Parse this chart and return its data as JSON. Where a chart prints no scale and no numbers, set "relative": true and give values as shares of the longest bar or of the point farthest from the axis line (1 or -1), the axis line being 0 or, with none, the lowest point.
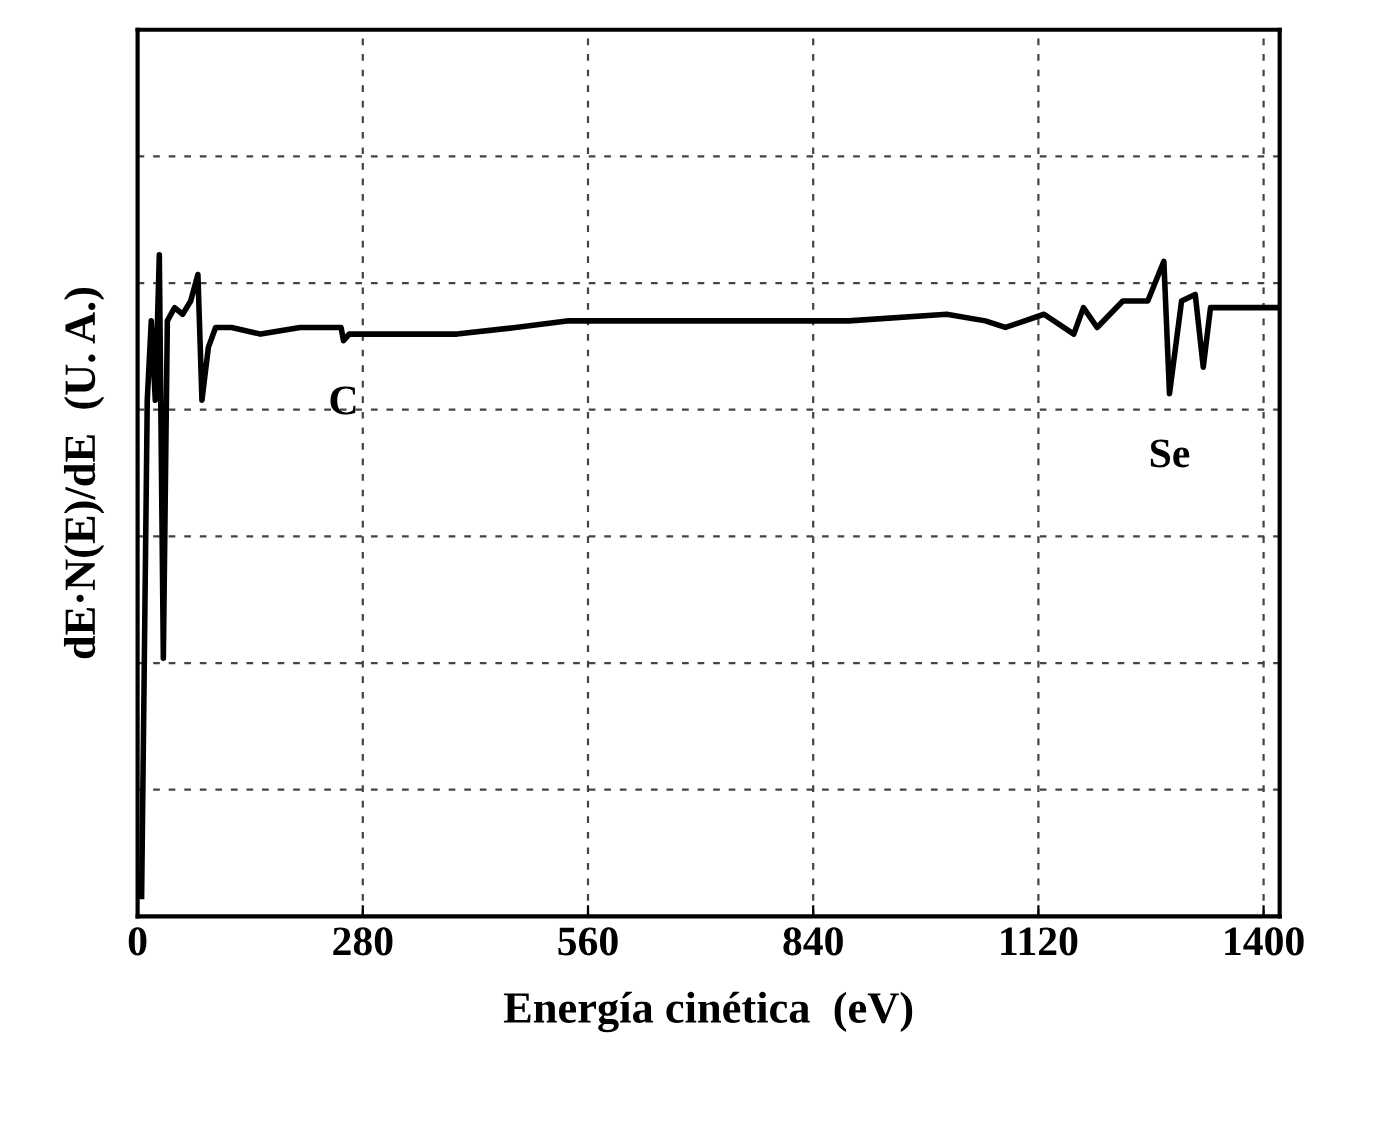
{
  "chart_data": {
    "type": "line",
    "relative": true,
    "xlabel": "Energía cinética  (eV)",
    "ylabel": "dE·N(E)/dE  (U. A.)",
    "x": [
      5,
      7,
      12,
      17,
      22,
      27,
      32,
      37,
      46,
      56,
      66,
      75,
      80,
      88,
      97,
      117,
      153,
      202,
      253,
      256,
      263,
      324,
      397,
      470,
      536,
      640,
      762,
      884,
      1006,
      1054,
      1079,
      1127,
      1164,
      1176,
      1193,
      1225,
      1256,
      1276,
      1283,
      1298,
      1315,
      1325,
      1334,
      1420
    ],
    "series": [
      {
        "color": "#000000",
        "values": [
          0.03,
          0.24,
          0.78,
          0.9,
          0.78,
          1.0,
          0.39,
          0.9,
          0.92,
          0.91,
          0.93,
          0.97,
          0.78,
          0.86,
          0.89,
          0.89,
          0.88,
          0.89,
          0.89,
          0.87,
          0.88,
          0.88,
          0.88,
          0.89,
          0.9,
          0.9,
          0.9,
          0.9,
          0.91,
          0.9,
          0.89,
          0.91,
          0.88,
          0.92,
          0.89,
          0.93,
          0.93,
          0.99,
          0.79,
          0.93,
          0.94,
          0.83,
          0.92,
          0.92
        ]
      }
    ],
    "xlim": [
      0,
      1420
    ],
    "xticks": [
      0,
      280,
      560,
      840,
      1120,
      1400
    ],
    "annotations": [
      {
        "text": "C",
        "x": 256,
        "y": 0.87
      },
      {
        "text": "Se",
        "x": 1283,
        "y": 0.79
      }
    ],
    "grid": true,
    "tick_labels": "x",
    "line_style": "solid",
    "marker": "none"
  }
}
